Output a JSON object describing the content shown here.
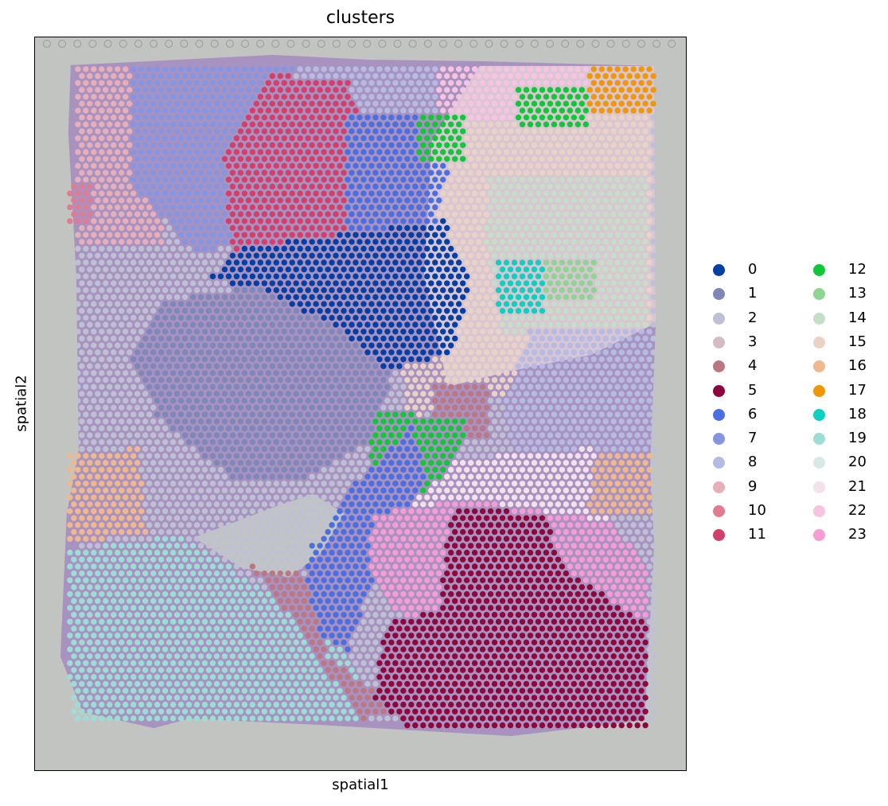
{
  "chart_data": {
    "type": "scatter",
    "title": "clusters",
    "xlabel": "spatial1",
    "ylabel": "spatial2",
    "legend_placement": "right, outside plot, two columns",
    "grid": false,
    "ticks": false,
    "background": "H&E tissue section image under spatial spots",
    "categories": [
      "0",
      "1",
      "2",
      "3",
      "4",
      "5",
      "6",
      "7",
      "8",
      "9",
      "10",
      "11",
      "12",
      "13",
      "14",
      "15",
      "16",
      "17",
      "18",
      "19",
      "20",
      "21",
      "22",
      "23"
    ],
    "colors": [
      "#023fa5",
      "#7d87b9",
      "#bec1d4",
      "#d6bcc0",
      "#bb7784",
      "#8e063b",
      "#4a6fe3",
      "#8595e1",
      "#b5bbe3",
      "#e6afb9",
      "#e07b91",
      "#d33f6a",
      "#11c638",
      "#8dd593",
      "#c6dec7",
      "#ead3c6",
      "#f0b98d",
      "#ef9708",
      "#0fcfc0",
      "#9cded6",
      "#d5eae7",
      "#f3e1eb",
      "#f6c4e1",
      "#f79cd4"
    ],
    "regions": [
      {
        "cluster": "2",
        "polygon": [
          [
            0.06,
            0.04
          ],
          [
            0.96,
            0.04
          ],
          [
            0.96,
            0.93
          ],
          [
            0.06,
            0.93
          ]
        ]
      },
      {
        "cluster": "15",
        "polygon": [
          [
            0.59,
            0.05
          ],
          [
            0.95,
            0.05
          ],
          [
            0.95,
            0.38
          ],
          [
            0.75,
            0.48
          ],
          [
            0.57,
            0.52
          ],
          [
            0.54,
            0.18
          ]
        ]
      },
      {
        "cluster": "22",
        "polygon": [
          [
            0.62,
            0.04
          ],
          [
            0.96,
            0.04
          ],
          [
            0.96,
            0.1
          ],
          [
            0.62,
            0.12
          ]
        ]
      },
      {
        "cluster": "9",
        "polygon": [
          [
            0.06,
            0.04
          ],
          [
            0.2,
            0.04
          ],
          [
            0.2,
            0.28
          ],
          [
            0.06,
            0.28
          ]
        ]
      },
      {
        "cluster": "7",
        "polygon": [
          [
            0.15,
            0.04
          ],
          [
            0.4,
            0.04
          ],
          [
            0.36,
            0.25
          ],
          [
            0.25,
            0.3
          ],
          [
            0.15,
            0.2
          ]
        ]
      },
      {
        "cluster": "8",
        "polygon": [
          [
            0.4,
            0.04
          ],
          [
            0.62,
            0.04
          ],
          [
            0.62,
            0.12
          ],
          [
            0.48,
            0.12
          ]
        ]
      },
      {
        "cluster": "11",
        "polygon": [
          [
            0.36,
            0.05
          ],
          [
            0.48,
            0.06
          ],
          [
            0.55,
            0.22
          ],
          [
            0.48,
            0.31
          ],
          [
            0.3,
            0.3
          ],
          [
            0.29,
            0.16
          ]
        ]
      },
      {
        "cluster": "6",
        "polygon": [
          [
            0.48,
            0.1
          ],
          [
            0.63,
            0.1
          ],
          [
            0.64,
            0.17
          ],
          [
            0.6,
            0.3
          ],
          [
            0.55,
            0.33
          ],
          [
            0.48,
            0.28
          ]
        ]
      },
      {
        "cluster": "14",
        "polygon": [
          [
            0.7,
            0.19
          ],
          [
            0.94,
            0.19
          ],
          [
            0.94,
            0.4
          ],
          [
            0.72,
            0.41
          ],
          [
            0.69,
            0.28
          ]
        ]
      },
      {
        "cluster": "8",
        "polygon": [
          [
            0.76,
            0.4
          ],
          [
            0.95,
            0.4
          ],
          [
            0.95,
            0.58
          ],
          [
            0.74,
            0.6
          ],
          [
            0.72,
            0.5
          ]
        ]
      },
      {
        "cluster": "0",
        "polygon": [
          [
            0.3,
            0.29
          ],
          [
            0.46,
            0.27
          ],
          [
            0.63,
            0.25
          ],
          [
            0.67,
            0.34
          ],
          [
            0.64,
            0.43
          ],
          [
            0.52,
            0.46
          ],
          [
            0.45,
            0.43
          ],
          [
            0.35,
            0.35
          ],
          [
            0.27,
            0.33
          ]
        ]
      },
      {
        "cluster": "1",
        "polygon": [
          [
            0.2,
            0.36
          ],
          [
            0.34,
            0.34
          ],
          [
            0.47,
            0.4
          ],
          [
            0.55,
            0.46
          ],
          [
            0.52,
            0.55
          ],
          [
            0.42,
            0.6
          ],
          [
            0.3,
            0.6
          ],
          [
            0.19,
            0.52
          ],
          [
            0.15,
            0.44
          ]
        ]
      },
      {
        "cluster": "21",
        "polygon": [
          [
            0.58,
            0.58
          ],
          [
            0.86,
            0.56
          ],
          [
            0.92,
            0.62
          ],
          [
            0.88,
            0.66
          ],
          [
            0.6,
            0.66
          ],
          [
            0.56,
            0.61
          ]
        ]
      },
      {
        "cluster": "10",
        "polygon": [
          [
            0.04,
            0.2
          ],
          [
            0.09,
            0.2
          ],
          [
            0.09,
            0.26
          ],
          [
            0.04,
            0.26
          ]
        ]
      },
      {
        "cluster": "16",
        "polygon": [
          [
            0.03,
            0.57
          ],
          [
            0.16,
            0.56
          ],
          [
            0.17,
            0.68
          ],
          [
            0.04,
            0.69
          ]
        ]
      },
      {
        "cluster": "16",
        "polygon": [
          [
            0.86,
            0.57
          ],
          [
            0.95,
            0.57
          ],
          [
            0.95,
            0.65
          ],
          [
            0.85,
            0.65
          ]
        ]
      },
      {
        "cluster": "17",
        "polygon": [
          [
            0.85,
            0.04
          ],
          [
            0.96,
            0.04
          ],
          [
            0.96,
            0.1
          ],
          [
            0.85,
            0.1
          ]
        ]
      },
      {
        "cluster": "12",
        "polygon": [
          [
            0.74,
            0.07
          ],
          [
            0.85,
            0.07
          ],
          [
            0.85,
            0.12
          ],
          [
            0.74,
            0.12
          ]
        ]
      },
      {
        "cluster": "12",
        "polygon": [
          [
            0.59,
            0.1
          ],
          [
            0.66,
            0.1
          ],
          [
            0.66,
            0.17
          ],
          [
            0.59,
            0.17
          ]
        ]
      },
      {
        "cluster": "18",
        "polygon": [
          [
            0.71,
            0.3
          ],
          [
            0.78,
            0.3
          ],
          [
            0.78,
            0.38
          ],
          [
            0.71,
            0.38
          ]
        ]
      },
      {
        "cluster": "13",
        "polygon": [
          [
            0.78,
            0.3
          ],
          [
            0.86,
            0.3
          ],
          [
            0.86,
            0.36
          ],
          [
            0.78,
            0.36
          ]
        ]
      },
      {
        "cluster": "4",
        "polygon": [
          [
            0.61,
            0.47
          ],
          [
            0.7,
            0.47
          ],
          [
            0.7,
            0.55
          ],
          [
            0.61,
            0.55
          ]
        ]
      },
      {
        "cluster": "12",
        "polygon": [
          [
            0.52,
            0.51
          ],
          [
            0.67,
            0.52
          ],
          [
            0.63,
            0.6
          ],
          [
            0.56,
            0.64
          ],
          [
            0.51,
            0.6
          ]
        ]
      },
      {
        "cluster": "6",
        "polygon": [
          [
            0.58,
            0.53
          ],
          [
            0.6,
            0.6
          ],
          [
            0.55,
            0.67
          ],
          [
            0.51,
            0.76
          ],
          [
            0.48,
            0.84
          ],
          [
            0.41,
            0.81
          ],
          [
            0.42,
            0.7
          ],
          [
            0.48,
            0.62
          ]
        ]
      },
      {
        "cluster": "19",
        "polygon": [
          [
            0.05,
            0.7
          ],
          [
            0.22,
            0.68
          ],
          [
            0.35,
            0.75
          ],
          [
            0.49,
            0.85
          ],
          [
            0.5,
            0.93
          ],
          [
            0.06,
            0.93
          ],
          [
            0.04,
            0.8
          ]
        ]
      },
      {
        "cluster": "4",
        "polygon": [
          [
            0.33,
            0.72
          ],
          [
            0.41,
            0.73
          ],
          [
            0.45,
            0.85
          ],
          [
            0.58,
            0.92
          ],
          [
            0.5,
            0.93
          ],
          [
            0.4,
            0.8
          ]
        ]
      },
      {
        "cluster": "23",
        "polygon": [
          [
            0.52,
            0.65
          ],
          [
            0.66,
            0.63
          ],
          [
            0.88,
            0.66
          ],
          [
            0.94,
            0.72
          ],
          [
            0.94,
            0.79
          ],
          [
            0.58,
            0.81
          ],
          [
            0.51,
            0.73
          ]
        ]
      },
      {
        "cluster": "5",
        "polygon": [
          [
            0.64,
            0.64
          ],
          [
            0.78,
            0.65
          ],
          [
            0.82,
            0.73
          ],
          [
            0.94,
            0.8
          ],
          [
            0.94,
            0.95
          ],
          [
            0.6,
            0.96
          ],
          [
            0.52,
            0.9
          ],
          [
            0.54,
            0.8
          ],
          [
            0.62,
            0.78
          ]
        ]
      }
    ]
  }
}
